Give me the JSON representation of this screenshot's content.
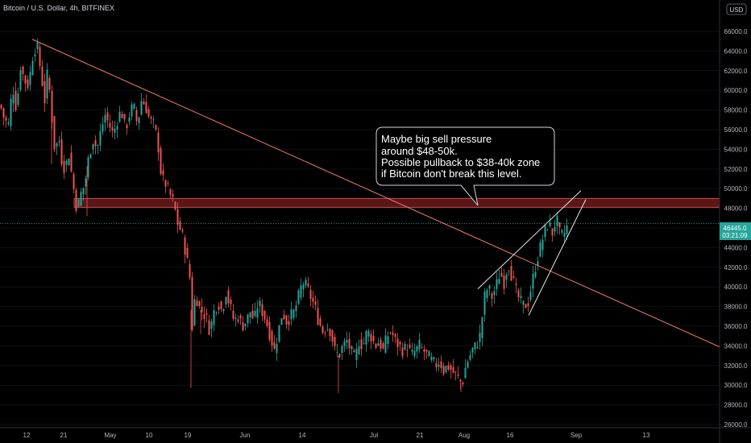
{
  "header": {
    "title": "Bitcoin / U.S. Dollar, 4h, BITFINEX",
    "currency": "USD"
  },
  "price_tag": {
    "price": "46445.0",
    "countdown": "03:21:09"
  },
  "callout": {
    "lines": [
      "Maybe big sell pressure",
      "around $48-50k.",
      "Possible pullback to $38-40k zone",
      "if Bitcoin don't break this level."
    ]
  },
  "colors": {
    "background": "#000000",
    "up": "#26a69a",
    "down": "#ef5350",
    "resistance_zone": "#7a1d1d",
    "trendline": "#f07a7a",
    "wedge": "#e6e6e6",
    "last_price": "#26a69a"
  },
  "chart_data": {
    "type": "candlestick",
    "symbol": "Bitcoin / U.S. Dollar",
    "interval": "4h",
    "exchange": "BITFINEX",
    "last_price": 46445.0,
    "x_ticks": [
      "12",
      "21",
      "May",
      "10",
      "19",
      "Jun",
      "14",
      "Jul",
      "21",
      "Aug",
      "16",
      "Sep",
      "13"
    ],
    "y_ticks": [
      "26000.0",
      "28000.0",
      "30000.0",
      "32000.0",
      "34000.0",
      "36000.0",
      "38000.0",
      "40000.0",
      "42000.0",
      "44000.0",
      "46000.0",
      "48000.0",
      "50000.0",
      "52000.0",
      "54000.0",
      "56000.0",
      "58000.0",
      "60000.0",
      "62000.0",
      "64000.0",
      "66000.0"
    ],
    "ylim": [
      25500,
      67500
    ],
    "price_path": [
      [
        0,
        58500
      ],
      [
        5,
        57000
      ],
      [
        10,
        56500
      ],
      [
        15,
        60500
      ],
      [
        20,
        58000
      ],
      [
        25,
        62500
      ],
      [
        30,
        61000
      ],
      [
        35,
        60500
      ],
      [
        40,
        63500
      ],
      [
        45,
        64800
      ],
      [
        50,
        62000
      ],
      [
        55,
        59000
      ],
      [
        58,
        61500
      ],
      [
        62,
        59500
      ],
      [
        65,
        56000
      ],
      [
        68,
        53500
      ],
      [
        72,
        55500
      ],
      [
        76,
        53000
      ],
      [
        80,
        52000
      ],
      [
        85,
        53500
      ],
      [
        90,
        50500
      ],
      [
        95,
        47800
      ],
      [
        100,
        49500
      ],
      [
        105,
        50500
      ],
      [
        110,
        53500
      ],
      [
        115,
        55000
      ],
      [
        120,
        54000
      ],
      [
        125,
        56000
      ],
      [
        130,
        57500
      ],
      [
        135,
        56500
      ],
      [
        140,
        55500
      ],
      [
        145,
        57000
      ],
      [
        150,
        58000
      ],
      [
        155,
        56000
      ],
      [
        160,
        57500
      ],
      [
        165,
        58500
      ],
      [
        170,
        56500
      ],
      [
        175,
        59000
      ],
      [
        180,
        58500
      ],
      [
        185,
        57000
      ],
      [
        190,
        56500
      ],
      [
        195,
        55000
      ],
      [
        200,
        51000
      ],
      [
        205,
        50500
      ],
      [
        210,
        49500
      ],
      [
        215,
        48500
      ],
      [
        220,
        46500
      ],
      [
        225,
        45500
      ],
      [
        230,
        43500
      ],
      [
        235,
        41000
      ],
      [
        238,
        36000
      ],
      [
        242,
        39500
      ],
      [
        246,
        38000
      ],
      [
        250,
        37500
      ],
      [
        255,
        37000
      ],
      [
        260,
        35500
      ],
      [
        265,
        37500
      ],
      [
        270,
        38500
      ],
      [
        275,
        37500
      ],
      [
        280,
        39500
      ],
      [
        285,
        38000
      ],
      [
        290,
        36500
      ],
      [
        295,
        37000
      ],
      [
        300,
        36000
      ],
      [
        305,
        36500
      ],
      [
        310,
        37500
      ],
      [
        315,
        36500
      ],
      [
        320,
        38500
      ],
      [
        325,
        37500
      ],
      [
        330,
        36500
      ],
      [
        335,
        35000
      ],
      [
        340,
        33500
      ],
      [
        345,
        35500
      ],
      [
        350,
        37500
      ],
      [
        355,
        36500
      ],
      [
        360,
        37000
      ],
      [
        365,
        37500
      ],
      [
        370,
        39000
      ],
      [
        375,
        40500
      ],
      [
        380,
        40000
      ],
      [
        385,
        39000
      ],
      [
        390,
        38000
      ],
      [
        395,
        36500
      ],
      [
        400,
        35500
      ],
      [
        405,
        36000
      ],
      [
        410,
        35500
      ],
      [
        415,
        33500
      ],
      [
        420,
        33000
      ],
      [
        425,
        34000
      ],
      [
        430,
        34500
      ],
      [
        435,
        33500
      ],
      [
        440,
        32500
      ],
      [
        445,
        34500
      ],
      [
        450,
        34000
      ],
      [
        455,
        35500
      ],
      [
        460,
        35000
      ],
      [
        465,
        34000
      ],
      [
        470,
        34500
      ],
      [
        475,
        33500
      ],
      [
        480,
        35000
      ],
      [
        485,
        35500
      ],
      [
        490,
        34500
      ],
      [
        495,
        34000
      ],
      [
        500,
        33500
      ],
      [
        505,
        34000
      ],
      [
        510,
        33000
      ],
      [
        515,
        33500
      ],
      [
        520,
        34000
      ],
      [
        525,
        33500
      ],
      [
        530,
        33000
      ],
      [
        535,
        32500
      ],
      [
        540,
        32000
      ],
      [
        545,
        32500
      ],
      [
        550,
        31500
      ],
      [
        555,
        32000
      ],
      [
        560,
        31500
      ],
      [
        565,
        31000
      ],
      [
        570,
        30500
      ],
      [
        573,
        30000
      ],
      [
        576,
        31500
      ],
      [
        580,
        32500
      ],
      [
        585,
        33500
      ],
      [
        590,
        34000
      ],
      [
        595,
        35000
      ],
      [
        598,
        37000
      ],
      [
        601,
        39000
      ],
      [
        605,
        40000
      ],
      [
        610,
        39000
      ],
      [
        615,
        40000
      ],
      [
        620,
        41500
      ],
      [
        625,
        40500
      ],
      [
        630,
        42500
      ],
      [
        635,
        41000
      ],
      [
        640,
        39500
      ],
      [
        645,
        38500
      ],
      [
        650,
        38000
      ],
      [
        655,
        38500
      ],
      [
        660,
        40500
      ],
      [
        665,
        42500
      ],
      [
        670,
        44000
      ],
      [
        675,
        45500
      ],
      [
        680,
        46500
      ],
      [
        685,
        45500
      ],
      [
        690,
        47000
      ],
      [
        695,
        45000
      ],
      [
        700,
        45500
      ],
      [
        705,
        46445
      ]
    ],
    "annotations": {
      "resistance_zone": [
        48100,
        49000
      ],
      "descending_trendline": {
        "from": [
          40,
          65200
        ],
        "to": [
          893,
          33900
        ]
      },
      "rising_wedge_upper": {
        "from": [
          593,
          39800
        ],
        "to": [
          721,
          49800
        ]
      },
      "rising_wedge_lower": {
        "from": [
          656,
          37100
        ],
        "to": [
          727,
          48900
        ]
      },
      "callout_text_box": "Maybe big sell pressure around $48-50k."
    }
  }
}
